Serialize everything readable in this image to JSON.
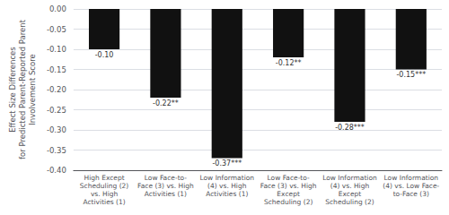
{
  "chart_data": {
    "type": "bar",
    "categories": [
      "High Except\nScheduling (2)\nvs. High\nActivities (1)",
      "Low Face-to-\nFace (3) vs. High\nActivities (1)",
      "Low Information\n(4) vs. High\nActivities (1)",
      "Low Face-to-\nFace (3) vs. High\nExcept\nScheduling (2)",
      "Low Information\n(4) vs. High\nExcept\nScheduling (2)",
      "Low Information\n(4) vs. Low Face-\nto-Face (3)"
    ],
    "values": [
      -0.1,
      -0.22,
      -0.37,
      -0.12,
      -0.28,
      -0.15
    ],
    "value_labels": [
      "-0.10",
      "-0.22**",
      "-0.37***",
      "-0.12**",
      "-0.28***",
      "-0.15***"
    ],
    "data_labels": true,
    "color": "#111111",
    "ylabel": "Effect Size Differences\nfor Predicted Parent-Reported Parent\nInvolvement Score",
    "ylim": [
      -0.4,
      0.0
    ],
    "yticks": [
      {
        "value": 0.0,
        "label": "0.00"
      },
      {
        "value": -0.05,
        "label": "-0.05"
      },
      {
        "value": -0.1,
        "label": "-0.10"
      },
      {
        "value": -0.15,
        "label": "-0.15"
      },
      {
        "value": -0.2,
        "label": "-0.20"
      },
      {
        "value": -0.25,
        "label": "-0.25"
      },
      {
        "value": -0.3,
        "label": "-0.30"
      },
      {
        "value": -0.35,
        "label": "-0.35"
      },
      {
        "value": -0.4,
        "label": "-0.40"
      }
    ],
    "grid": true
  }
}
